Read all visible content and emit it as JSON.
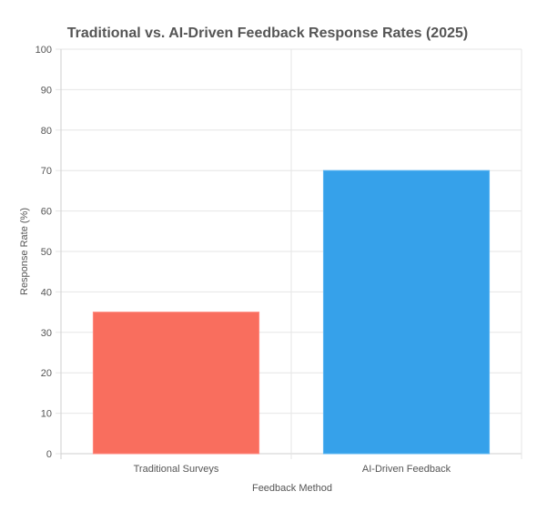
{
  "chart_data": {
    "type": "bar",
    "title": "Traditional vs. AI-Driven Feedback Response Rates (2025)",
    "xlabel": "Feedback Method",
    "ylabel": "Response Rate (%)",
    "categories": [
      "Traditional Surveys",
      "AI-Driven Feedback"
    ],
    "values": [
      35,
      70
    ],
    "ylim": [
      0,
      100
    ],
    "yticks": [
      0,
      10,
      20,
      30,
      40,
      50,
      60,
      70,
      80,
      90,
      100
    ],
    "grid": true,
    "legend": "none",
    "bar_colors": [
      "#f96e5e",
      "#36a1ea"
    ],
    "bar_border_colors": [
      "#ff8a80",
      "#5bb6f2"
    ],
    "colors": {
      "grid": "#e6e6e6",
      "axis": "#cfcfcf",
      "text": "#555555"
    }
  }
}
